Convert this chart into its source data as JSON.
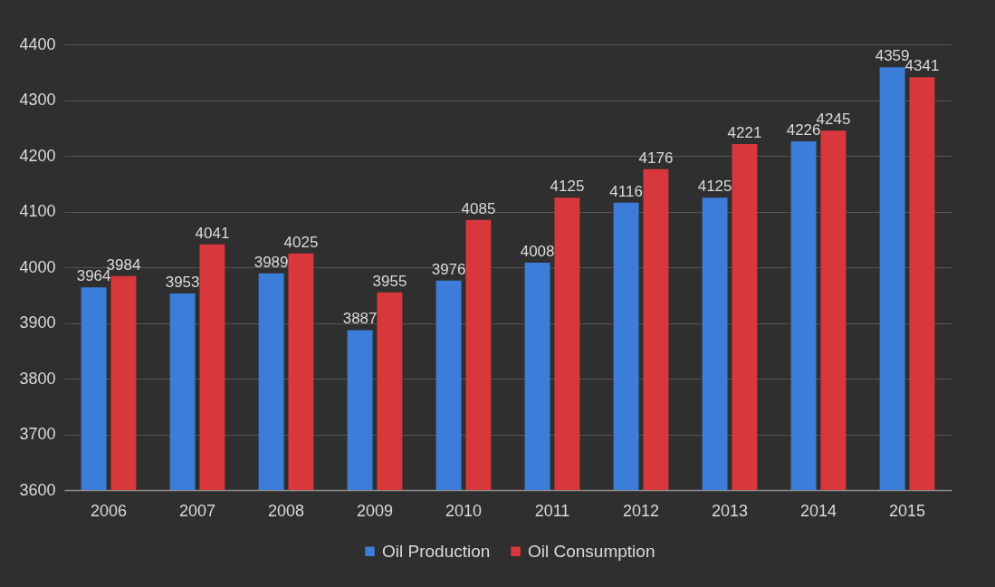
{
  "chart_data": {
    "type": "bar",
    "categories": [
      "2006",
      "2007",
      "2008",
      "2009",
      "2010",
      "2011",
      "2012",
      "2013",
      "2014",
      "2015"
    ],
    "series": [
      {
        "name": "Oil Production",
        "color": "#3b7dd8",
        "values": [
          3964,
          3953,
          3989,
          3887,
          3976,
          4008,
          4116,
          4125,
          4226,
          4359
        ]
      },
      {
        "name": "Oil Consumption",
        "color": "#d8373b",
        "values": [
          3984,
          4041,
          4025,
          3955,
          4085,
          4125,
          4176,
          4221,
          4245,
          4341
        ]
      }
    ],
    "ylim": [
      3600,
      4400
    ],
    "yticks": [
      3600,
      3700,
      3800,
      3900,
      4000,
      4100,
      4200,
      4300,
      4400
    ],
    "grid": "y",
    "legend": "bottom",
    "data_labels": true
  }
}
